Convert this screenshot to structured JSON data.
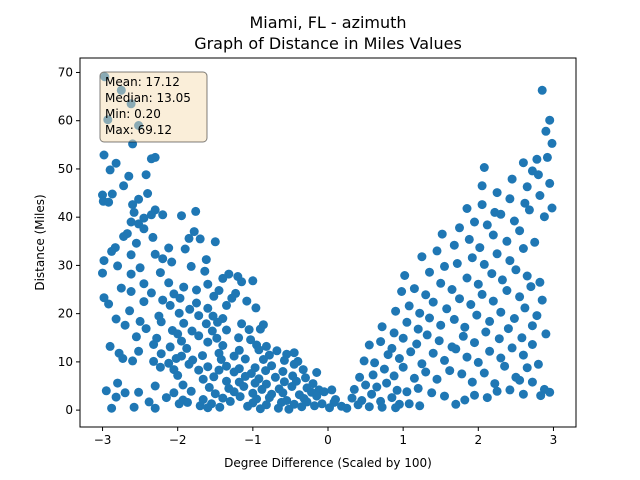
{
  "chart_data": {
    "type": "scatter",
    "title": "Miami, FL - azimuth",
    "subtitle": "Graph of Distance in Miles Values",
    "xlabel": "Degree Difference (Scaled by 100)",
    "ylabel": "Distance (Miles)",
    "xlim": [
      -3.3,
      3.3
    ],
    "ylim": [
      -3.5,
      73
    ],
    "xticks": [
      -3,
      -2,
      -1,
      0,
      1,
      2,
      3
    ],
    "xtick_labels": [
      "−3",
      "−2",
      "−1",
      "0",
      "1",
      "2",
      "3"
    ],
    "yticks": [
      0,
      10,
      20,
      30,
      40,
      50,
      60,
      70
    ],
    "ytick_labels": [
      "0",
      "10",
      "20",
      "30",
      "40",
      "50",
      "60",
      "70"
    ],
    "grid": false,
    "color": "#1f77b4",
    "stats": {
      "mean": "Mean: 17.12",
      "median": "Median: 13.05",
      "min": "Min: 0.20",
      "max": "Max: 69.12"
    },
    "points": [
      [
        -2.97,
        69.1
      ],
      [
        -2.75,
        66.3
      ],
      [
        -2.62,
        63.5
      ],
      [
        -2.93,
        60.2
      ],
      [
        -2.52,
        59.0
      ],
      [
        -2.6,
        55.2
      ],
      [
        -2.98,
        52.9
      ],
      [
        -2.82,
        51.2
      ],
      [
        -2.3,
        52.4
      ],
      [
        -2.35,
        52.1
      ],
      [
        -2.9,
        49.8
      ],
      [
        -2.65,
        48.5
      ],
      [
        -2.42,
        48.8
      ],
      [
        -2.72,
        46.5
      ],
      [
        -3.0,
        44.6
      ],
      [
        -2.87,
        44.8
      ],
      [
        -2.99,
        43.3
      ],
      [
        -2.92,
        43.1
      ],
      [
        -2.52,
        43.7
      ],
      [
        -2.6,
        42.6
      ],
      [
        -2.4,
        44.9
      ],
      [
        -2.3,
        41.5
      ],
      [
        -2.35,
        40.5
      ],
      [
        -2.58,
        41.0
      ],
      [
        -2.45,
        39.8
      ],
      [
        -2.2,
        40.5
      ],
      [
        -1.95,
        40.3
      ],
      [
        -1.76,
        41.2
      ],
      [
        -2.62,
        39.0
      ],
      [
        -2.52,
        38.6
      ],
      [
        -2.45,
        37.6
      ],
      [
        -2.67,
        36.6
      ],
      [
        -2.72,
        36.0
      ],
      [
        -2.33,
        35.8
      ],
      [
        -1.85,
        35.6
      ],
      [
        -1.7,
        35.5
      ],
      [
        -1.78,
        37.0
      ],
      [
        -2.55,
        34.6
      ],
      [
        -2.83,
        33.7
      ],
      [
        -2.88,
        32.9
      ],
      [
        -2.12,
        33.6
      ],
      [
        -1.9,
        33.4
      ],
      [
        -2.62,
        32.2
      ],
      [
        -2.3,
        32.3
      ],
      [
        -1.5,
        34.9
      ],
      [
        -2.2,
        31.4
      ],
      [
        -2.98,
        31.0
      ],
      [
        -2.8,
        29.9
      ],
      [
        -2.5,
        29.5
      ],
      [
        -2.08,
        30.7
      ],
      [
        -1.82,
        29.8
      ],
      [
        -1.62,
        31.2
      ],
      [
        -3.0,
        28.4
      ],
      [
        -2.62,
        28.2
      ],
      [
        -2.23,
        28.5
      ],
      [
        -1.64,
        28.8
      ],
      [
        -1.32,
        28.2
      ],
      [
        -1.2,
        27.7
      ],
      [
        -2.75,
        25.3
      ],
      [
        -2.45,
        26.2
      ],
      [
        -2.12,
        26.4
      ],
      [
        -1.92,
        25.5
      ],
      [
        -1.6,
        26.1
      ],
      [
        -1.4,
        27.3
      ],
      [
        -1.15,
        26.6
      ],
      [
        -1.0,
        26.8
      ],
      [
        -2.62,
        24.6
      ],
      [
        -2.35,
        24.3
      ],
      [
        -2.05,
        24.1
      ],
      [
        -1.75,
        24.9
      ],
      [
        -1.45,
        24.8
      ],
      [
        -1.23,
        24.2
      ],
      [
        -2.98,
        23.3
      ],
      [
        -2.45,
        22.5
      ],
      [
        -2.2,
        22.8
      ],
      [
        -1.97,
        23.2
      ],
      [
        -1.75,
        22.2
      ],
      [
        -1.52,
        23.6
      ],
      [
        -1.28,
        23.2
      ],
      [
        -1.08,
        22.6
      ],
      [
        -2.92,
        22.0
      ],
      [
        -2.1,
        21.7
      ],
      [
        -1.84,
        20.9
      ],
      [
        -1.6,
        21.1
      ],
      [
        -1.35,
        21.7
      ],
      [
        -0.96,
        21.2
      ],
      [
        -2.64,
        20.6
      ],
      [
        -2.25,
        19.5
      ],
      [
        -1.98,
        20.1
      ],
      [
        -1.72,
        19.6
      ],
      [
        -1.53,
        19.5
      ],
      [
        -1.4,
        19.0
      ],
      [
        -2.5,
        18.4
      ],
      [
        -2.22,
        18.3
      ],
      [
        -1.92,
        18.0
      ],
      [
        -1.62,
        17.9
      ],
      [
        -1.47,
        18.2
      ],
      [
        -1.15,
        17.9
      ],
      [
        -0.86,
        17.7
      ],
      [
        -2.82,
        18.9
      ],
      [
        -2.7,
        17.6
      ],
      [
        -2.42,
        16.9
      ],
      [
        -2.07,
        16.5
      ],
      [
        -1.81,
        16.4
      ],
      [
        -1.54,
        16.4
      ],
      [
        -1.35,
        16.6
      ],
      [
        -1.05,
        16.7
      ],
      [
        -0.9,
        16.8
      ],
      [
        -2.0,
        15.8
      ],
      [
        -1.72,
        15.4
      ],
      [
        -1.48,
        14.9
      ],
      [
        -1.19,
        15.0
      ],
      [
        -1.03,
        14.6
      ],
      [
        -2.55,
        15.2
      ],
      [
        -2.28,
        14.9
      ],
      [
        -1.95,
        14.3
      ],
      [
        -1.6,
        14.1
      ],
      [
        -1.4,
        13.4
      ],
      [
        -0.95,
        13.5
      ],
      [
        -0.82,
        13.2
      ],
      [
        -2.9,
        13.2
      ],
      [
        -2.32,
        13.6
      ],
      [
        -2.1,
        13.1
      ],
      [
        -1.88,
        12.8
      ],
      [
        -1.18,
        12.4
      ],
      [
        -0.92,
        12.5
      ],
      [
        -0.68,
        12.3
      ],
      [
        -0.55,
        11.6
      ],
      [
        -2.78,
        11.8
      ],
      [
        -2.52,
        12.2
      ],
      [
        -2.22,
        11.7
      ],
      [
        -1.95,
        11.2
      ],
      [
        -1.67,
        11.3
      ],
      [
        -1.45,
        11.8
      ],
      [
        -1.25,
        11.2
      ],
      [
        -0.78,
        11.4
      ],
      [
        -0.45,
        11.9
      ],
      [
        -2.73,
        10.7
      ],
      [
        -2.6,
        10.2
      ],
      [
        -2.32,
        10.1
      ],
      [
        -2.02,
        10.7
      ],
      [
        -1.8,
        10.4
      ],
      [
        -1.42,
        10.5
      ],
      [
        -1.1,
        10.6
      ],
      [
        -0.86,
        10.5
      ],
      [
        -0.58,
        10.3
      ],
      [
        -0.4,
        10.1
      ],
      [
        -2.12,
        9.7
      ],
      [
        -1.85,
        9.5
      ],
      [
        -1.6,
        9.0
      ],
      [
        -1.35,
        9.1
      ],
      [
        -1.18,
        8.6
      ],
      [
        -0.97,
        8.8
      ],
      [
        -0.75,
        9.2
      ],
      [
        -0.45,
        9.5
      ],
      [
        -2.23,
        8.9
      ],
      [
        -2.05,
        8.4
      ],
      [
        -1.72,
        8.3
      ],
      [
        -1.45,
        8.3
      ],
      [
        -1.25,
        7.9
      ],
      [
        -1.02,
        7.6
      ],
      [
        -0.83,
        8.2
      ],
      [
        -0.6,
        8.0
      ],
      [
        -0.33,
        8.4
      ],
      [
        -0.15,
        7.8
      ],
      [
        -2.0,
        7.2
      ],
      [
        -1.52,
        6.9
      ],
      [
        -1.1,
        7.0
      ],
      [
        -0.92,
        6.5
      ],
      [
        -0.7,
        6.8
      ],
      [
        -0.47,
        7.1
      ],
      [
        -0.3,
        6.7
      ],
      [
        -1.66,
        6.4
      ],
      [
        -1.35,
        6.0
      ],
      [
        -1.18,
        5.8
      ],
      [
        -0.97,
        5.6
      ],
      [
        -0.82,
        5.4
      ],
      [
        -0.58,
        5.9
      ],
      [
        -0.42,
        6.0
      ],
      [
        -0.2,
        5.5
      ],
      [
        -2.8,
        5.6
      ],
      [
        -2.3,
        5.0
      ],
      [
        -1.93,
        5.2
      ],
      [
        -1.58,
        4.7
      ],
      [
        -1.32,
        4.5
      ],
      [
        -1.12,
        4.9
      ],
      [
        -0.88,
        4.3
      ],
      [
        -0.65,
        4.4
      ],
      [
        -0.48,
        4.9
      ],
      [
        -0.28,
        4.6
      ],
      [
        -0.12,
        4.2
      ],
      [
        -2.95,
        4.0
      ],
      [
        -2.7,
        3.6
      ],
      [
        -2.52,
        3.7
      ],
      [
        -2.05,
        3.6
      ],
      [
        -1.82,
        3.9
      ],
      [
        -1.5,
        3.4
      ],
      [
        -1.25,
        3.8
      ],
      [
        -1.0,
        3.5
      ],
      [
        -0.75,
        3.3
      ],
      [
        -0.6,
        3.6
      ],
      [
        -0.38,
        3.2
      ],
      [
        -0.22,
        3.7
      ],
      [
        -0.05,
        3.8
      ],
      [
        0.05,
        4.2
      ],
      [
        -2.82,
        2.7
      ],
      [
        -2.15,
        2.6
      ],
      [
        -1.93,
        2.1
      ],
      [
        -1.66,
        2.2
      ],
      [
        -1.4,
        2.5
      ],
      [
        -1.17,
        2.8
      ],
      [
        -0.95,
        2.3
      ],
      [
        -0.78,
        2.6
      ],
      [
        -0.55,
        2.0
      ],
      [
        -0.32,
        2.4
      ],
      [
        -0.15,
        2.9
      ],
      [
        0.1,
        2.2
      ],
      [
        -2.38,
        1.7
      ],
      [
        -1.87,
        1.6
      ],
      [
        -1.55,
        1.3
      ],
      [
        -1.3,
        1.8
      ],
      [
        -1.0,
        1.5
      ],
      [
        -0.82,
        1.1
      ],
      [
        -0.62,
        1.6
      ],
      [
        -0.45,
        1.2
      ],
      [
        -0.28,
        1.7
      ],
      [
        -0.08,
        1.3
      ],
      [
        0.08,
        1.6
      ],
      [
        -1.98,
        1.3
      ],
      [
        -1.7,
        0.9
      ],
      [
        -1.44,
        0.6
      ],
      [
        -1.07,
        0.8
      ],
      [
        -0.66,
        0.4
      ],
      [
        -0.35,
        0.7
      ],
      [
        -0.18,
        0.9
      ],
      [
        0.02,
        0.5
      ],
      [
        0.18,
        0.8
      ],
      [
        -2.88,
        0.4
      ],
      [
        -2.58,
        0.6
      ],
      [
        -2.3,
        0.4
      ],
      [
        -1.6,
        0.5
      ],
      [
        -0.9,
        0.3
      ],
      [
        -0.52,
        0.2
      ],
      [
        0.25,
        0.4
      ],
      [
        0.32,
        2.5
      ],
      [
        0.45,
        2.0
      ],
      [
        0.58,
        3.3
      ],
      [
        0.7,
        1.8
      ],
      [
        0.85,
        2.6
      ],
      [
        0.95,
        1.2
      ],
      [
        0.4,
        1.1
      ],
      [
        0.55,
        0.7
      ],
      [
        0.72,
        0.6
      ],
      [
        0.9,
        0.5
      ],
      [
        1.08,
        1.3
      ],
      [
        1.22,
        0.9
      ],
      [
        0.35,
        4.3
      ],
      [
        0.5,
        5.2
      ],
      [
        0.65,
        4.8
      ],
      [
        0.78,
        5.6
      ],
      [
        0.92,
        4.1
      ],
      [
        1.05,
        3.8
      ],
      [
        1.2,
        4.5
      ],
      [
        1.38,
        3.6
      ],
      [
        1.55,
        2.9
      ],
      [
        1.7,
        1.2
      ],
      [
        1.82,
        2.1
      ],
      [
        1.95,
        3.1
      ],
      [
        2.12,
        2.6
      ],
      [
        2.25,
        3.9
      ],
      [
        2.42,
        4.2
      ],
      [
        2.6,
        3.3
      ],
      [
        2.72,
        5.8
      ],
      [
        2.88,
        4.3
      ],
      [
        2.95,
        3.7
      ],
      [
        2.83,
        3.0
      ],
      [
        2.55,
        6.2
      ],
      [
        0.42,
        6.8
      ],
      [
        0.6,
        7.3
      ],
      [
        0.75,
        8.5
      ],
      [
        0.88,
        7.1
      ],
      [
        1.0,
        8.9
      ],
      [
        1.15,
        6.6
      ],
      [
        1.3,
        7.9
      ],
      [
        1.45,
        6.4
      ],
      [
        1.62,
        8.2
      ],
      [
        1.78,
        7.5
      ],
      [
        1.92,
        5.8
      ],
      [
        2.08,
        7.7
      ],
      [
        2.22,
        5.5
      ],
      [
        2.35,
        9.1
      ],
      [
        2.5,
        6.8
      ],
      [
        2.65,
        8.8
      ],
      [
        2.8,
        9.5
      ],
      [
        0.48,
        10.2
      ],
      [
        0.62,
        9.8
      ],
      [
        0.8,
        11.5
      ],
      [
        0.95,
        10.7
      ],
      [
        1.1,
        12.1
      ],
      [
        1.25,
        9.6
      ],
      [
        1.4,
        11.8
      ],
      [
        1.55,
        10.3
      ],
      [
        1.7,
        12.7
      ],
      [
        1.85,
        11.0
      ],
      [
        2.0,
        9.9
      ],
      [
        2.15,
        12.2
      ],
      [
        2.3,
        10.8
      ],
      [
        2.45,
        12.9
      ],
      [
        2.6,
        11.4
      ],
      [
        2.72,
        13.6
      ],
      [
        0.55,
        13.5
      ],
      [
        0.7,
        14.2
      ],
      [
        0.85,
        12.8
      ],
      [
        1.0,
        14.9
      ],
      [
        1.18,
        13.7
      ],
      [
        1.32,
        15.6
      ],
      [
        1.48,
        14.4
      ],
      [
        1.65,
        13.1
      ],
      [
        1.8,
        15.3
      ],
      [
        1.95,
        14.0
      ],
      [
        2.1,
        16.2
      ],
      [
        2.28,
        14.8
      ],
      [
        2.4,
        16.9
      ],
      [
        2.58,
        15.0
      ],
      [
        2.72,
        17.5
      ],
      [
        2.9,
        15.8
      ],
      [
        0.72,
        17.3
      ],
      [
        0.88,
        16.0
      ],
      [
        1.05,
        18.2
      ],
      [
        1.2,
        16.8
      ],
      [
        1.35,
        19.1
      ],
      [
        1.5,
        17.6
      ],
      [
        1.68,
        18.8
      ],
      [
        1.82,
        17.2
      ],
      [
        1.98,
        19.7
      ],
      [
        2.15,
        18.4
      ],
      [
        2.3,
        20.3
      ],
      [
        2.48,
        19.0
      ],
      [
        2.62,
        21.2
      ],
      [
        2.78,
        19.6
      ],
      [
        0.9,
        20.5
      ],
      [
        1.08,
        21.6
      ],
      [
        1.22,
        20.1
      ],
      [
        1.4,
        22.4
      ],
      [
        1.58,
        21.0
      ],
      [
        1.75,
        23.1
      ],
      [
        1.9,
        21.9
      ],
      [
        2.05,
        24.0
      ],
      [
        2.2,
        22.6
      ],
      [
        2.38,
        24.8
      ],
      [
        2.55,
        23.5
      ],
      [
        2.7,
        25.6
      ],
      [
        2.85,
        22.8
      ],
      [
        0.98,
        24.6
      ],
      [
        1.15,
        25.2
      ],
      [
        1.3,
        23.9
      ],
      [
        1.5,
        26.3
      ],
      [
        1.65,
        25.0
      ],
      [
        1.85,
        27.4
      ],
      [
        2.0,
        26.1
      ],
      [
        2.18,
        28.3
      ],
      [
        2.32,
        27.0
      ],
      [
        2.5,
        29.1
      ],
      [
        2.65,
        27.8
      ],
      [
        2.82,
        26.5
      ],
      [
        1.02,
        27.9
      ],
      [
        1.35,
        28.6
      ],
      [
        1.55,
        29.8
      ],
      [
        1.72,
        30.4
      ],
      [
        1.92,
        31.6
      ],
      [
        2.08,
        30.2
      ],
      [
        2.25,
        32.4
      ],
      [
        2.42,
        31.0
      ],
      [
        2.6,
        33.5
      ],
      [
        1.25,
        31.8
      ],
      [
        1.45,
        33.0
      ],
      [
        1.68,
        34.2
      ],
      [
        1.88,
        35.4
      ],
      [
        2.02,
        33.7
      ],
      [
        2.2,
        36.3
      ],
      [
        2.38,
        35.0
      ],
      [
        2.55,
        37.2
      ],
      [
        2.75,
        34.8
      ],
      [
        1.52,
        36.5
      ],
      [
        1.75,
        37.8
      ],
      [
        1.95,
        39.0
      ],
      [
        2.12,
        38.4
      ],
      [
        2.3,
        40.6
      ],
      [
        2.48,
        39.2
      ],
      [
        2.68,
        41.5
      ],
      [
        2.88,
        40.1
      ],
      [
        1.85,
        41.8
      ],
      [
        2.05,
        42.6
      ],
      [
        2.22,
        41.0
      ],
      [
        2.42,
        43.8
      ],
      [
        2.62,
        42.9
      ],
      [
        2.82,
        44.5
      ],
      [
        2.98,
        41.9
      ],
      [
        2.05,
        46.5
      ],
      [
        2.25,
        45.1
      ],
      [
        2.45,
        47.9
      ],
      [
        2.65,
        46.3
      ],
      [
        2.8,
        48.8
      ],
      [
        2.95,
        47.0
      ],
      [
        2.08,
        50.3
      ],
      [
        2.6,
        51.3
      ],
      [
        2.72,
        49.6
      ],
      [
        2.92,
        52.4
      ],
      [
        2.78,
        52.0
      ],
      [
        2.98,
        55.3
      ],
      [
        2.9,
        57.8
      ],
      [
        2.95,
        60.1
      ],
      [
        2.85,
        66.3
      ]
    ]
  }
}
